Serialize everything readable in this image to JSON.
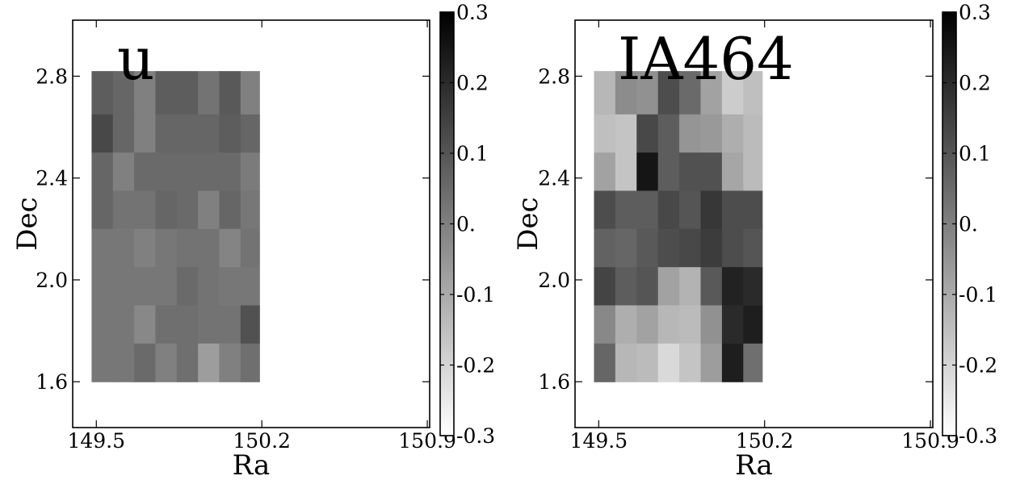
{
  "chart_data": [
    {
      "type": "heatmap",
      "title": "u",
      "xlabel": "Ra",
      "ylabel": "Dec",
      "xlim": [
        149.4,
        150.91
      ],
      "ylim": [
        1.42,
        3.02
      ],
      "xticks": [
        "149.5",
        "150.2",
        "150.9"
      ],
      "xtick_values": [
        149.5,
        150.2,
        150.9
      ],
      "yticks": [
        "1.6",
        "2.0",
        "2.4",
        "2.8"
      ],
      "ytick_values": [
        1.6,
        2.0,
        2.4,
        2.8
      ],
      "x_edges": [
        149.48,
        149.57,
        149.66,
        149.75,
        149.84,
        149.93,
        150.02,
        150.11,
        150.19
      ],
      "y_edges": [
        1.6,
        1.75,
        1.9,
        2.05,
        2.2,
        2.35,
        2.5,
        2.65,
        2.82
      ],
      "grid": false,
      "colorbar": {
        "min": -0.3,
        "max": 0.3,
        "ticks": [
          "0.3",
          "0.2",
          "0.1",
          "0.",
          "-0.1",
          "-0.2",
          "-0.3"
        ],
        "tick_values": [
          0.3,
          0.2,
          0.1,
          0.0,
          -0.1,
          -0.2,
          -0.3
        ]
      },
      "values": [
        [
          0.08,
          0.06,
          0.0,
          0.08,
          0.08,
          0.03,
          0.09,
          0.0
        ],
        [
          0.13,
          0.06,
          0.0,
          0.06,
          0.06,
          0.06,
          0.08,
          0.06
        ],
        [
          0.06,
          0.0,
          0.05,
          0.05,
          0.05,
          0.05,
          0.05,
          0.01
        ],
        [
          0.06,
          0.03,
          0.03,
          0.06,
          0.05,
          0.0,
          0.06,
          0.02
        ],
        [
          0.02,
          0.02,
          0.0,
          0.02,
          0.03,
          0.03,
          -0.01,
          0.03
        ],
        [
          0.02,
          0.02,
          0.02,
          0.02,
          0.05,
          0.03,
          0.02,
          0.02
        ],
        [
          0.02,
          0.02,
          -0.02,
          0.04,
          0.04,
          0.03,
          0.03,
          0.11
        ],
        [
          0.02,
          0.02,
          0.05,
          0.0,
          0.04,
          -0.07,
          0.0,
          0.04
        ]
      ]
    },
    {
      "type": "heatmap",
      "title": "IA464",
      "xlabel": "Ra",
      "ylabel": "Dec",
      "xlim": [
        149.4,
        150.91
      ],
      "ylim": [
        1.42,
        3.02
      ],
      "xticks": [
        "149.5",
        "150.2",
        "150.9"
      ],
      "xtick_values": [
        149.5,
        150.2,
        150.9
      ],
      "yticks": [
        "1.6",
        "2.0",
        "2.4",
        "2.8"
      ],
      "ytick_values": [
        1.6,
        2.0,
        2.4,
        2.8
      ],
      "x_edges": [
        149.48,
        149.57,
        149.66,
        149.75,
        149.84,
        149.93,
        150.02,
        150.11,
        150.19
      ],
      "y_edges": [
        1.6,
        1.75,
        1.9,
        2.05,
        2.2,
        2.35,
        2.5,
        2.65,
        2.82
      ],
      "grid": false,
      "colorbar": {
        "min": -0.3,
        "max": 0.3,
        "ticks": [
          "0.3",
          "0.2",
          "0.1",
          "0.",
          "-0.1",
          "-0.2",
          "-0.3"
        ],
        "tick_values": [
          0.3,
          0.2,
          0.1,
          0.0,
          -0.1,
          -0.2,
          -0.3
        ]
      },
      "values": [
        [
          -0.13,
          -0.03,
          -0.04,
          0.12,
          0.05,
          -0.08,
          -0.18,
          -0.15
        ],
        [
          -0.15,
          -0.16,
          0.13,
          0.08,
          -0.05,
          -0.06,
          -0.11,
          -0.14
        ],
        [
          -0.08,
          -0.16,
          0.25,
          0.08,
          0.11,
          0.11,
          -0.09,
          -0.14
        ],
        [
          0.12,
          0.08,
          0.08,
          0.13,
          0.1,
          0.17,
          0.12,
          0.12
        ],
        [
          0.07,
          0.06,
          0.09,
          0.12,
          0.13,
          0.16,
          0.12,
          0.1
        ],
        [
          0.14,
          0.08,
          0.1,
          -0.08,
          -0.12,
          0.09,
          0.22,
          0.2
        ],
        [
          -0.02,
          -0.11,
          -0.08,
          -0.13,
          -0.14,
          -0.04,
          0.2,
          0.23
        ],
        [
          0.06,
          -0.13,
          -0.14,
          -0.21,
          -0.16,
          -0.07,
          0.23,
          0.04
        ]
      ]
    }
  ]
}
